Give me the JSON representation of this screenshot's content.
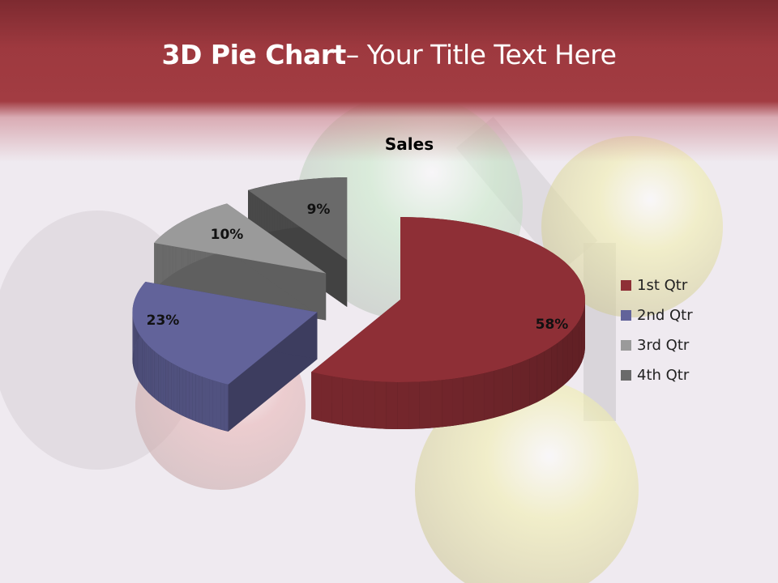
{
  "slide": {
    "title_bold": "3D Pie Chart",
    "title_rest": "– Your Title Text Here",
    "header_color": "#9e393f"
  },
  "chart_data": {
    "type": "pie",
    "three_d": true,
    "exploded": true,
    "title": "Sales",
    "categories": [
      "1st Qtr",
      "2nd Qtr",
      "3rd Qtr",
      "4th Qtr"
    ],
    "values": [
      58,
      23,
      10,
      9
    ],
    "data_labels": [
      "58%",
      "23%",
      "10%",
      "9%"
    ],
    "colors": [
      "#8e2f36",
      "#62639a",
      "#9a9a9a",
      "#6a6a6a"
    ],
    "legend_position": "right"
  }
}
